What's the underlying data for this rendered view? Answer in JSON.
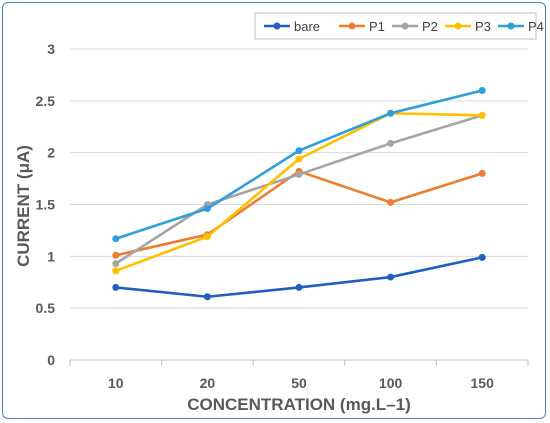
{
  "chart_data": {
    "type": "line",
    "categories": [
      "10",
      "20",
      "50",
      "100",
      "150"
    ],
    "xlabel": "CONCENTRATION (mg.L–1)",
    "ylabel": "CURRENT (μA)",
    "ylim": [
      0,
      3
    ],
    "yticks": [
      "0",
      "0.5",
      "1",
      "1.5",
      "2",
      "2.5",
      "3"
    ],
    "grid": "horizontal",
    "legend_position": "top-right",
    "series": [
      {
        "name": "bare",
        "color": "#1f5fbf",
        "values": [
          0.7,
          0.61,
          0.7,
          0.8,
          0.99
        ]
      },
      {
        "name": "P1",
        "color": "#ed7d31",
        "values": [
          1.01,
          1.21,
          1.82,
          1.52,
          1.8
        ]
      },
      {
        "name": "P2",
        "color": "#a5a5a5",
        "values": [
          0.93,
          1.5,
          1.79,
          2.09,
          2.36
        ]
      },
      {
        "name": "P3",
        "color": "#ffc000",
        "values": [
          0.86,
          1.19,
          1.94,
          2.38,
          2.36
        ]
      },
      {
        "name": "P4",
        "color": "#2e9fd8",
        "values": [
          1.17,
          1.46,
          2.02,
          2.38,
          2.6
        ]
      }
    ]
  }
}
